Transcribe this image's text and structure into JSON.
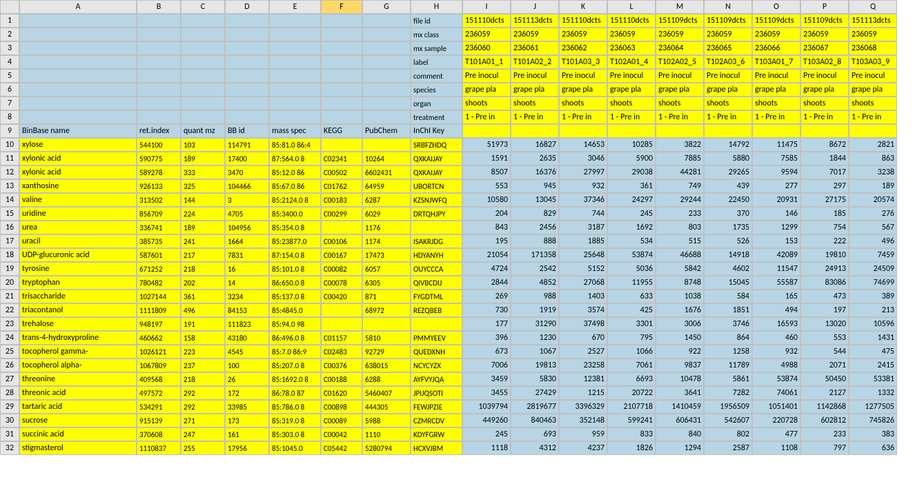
{
  "colors": {
    "lightblue": "#b7d5e4",
    "yellow": "#ffff00",
    "header_bg": "#e6e6e6",
    "border": "#c0c0c0",
    "selected_col": "#ffd966"
  },
  "selected_column": "F",
  "col_letters": [
    "A",
    "B",
    "C",
    "D",
    "E",
    "F",
    "G",
    "H",
    "I",
    "J",
    "K",
    "L",
    "M",
    "N",
    "O",
    "P",
    "Q"
  ],
  "row_numbers": [
    1,
    2,
    3,
    4,
    5,
    6,
    7,
    8,
    9,
    10,
    11,
    12,
    13,
    14,
    15,
    16,
    17,
    18,
    19,
    20,
    21,
    22,
    23,
    24,
    25,
    26,
    27,
    28,
    29,
    30,
    31,
    32
  ],
  "meta_labels": {
    "r1": "file id",
    "r2": "mx class",
    "r3": "mx sample",
    "r4": "label",
    "r5": "comment",
    "r6": "species",
    "r7": "organ",
    "r8": "treatment"
  },
  "headers_row9": {
    "A": "BinBase name",
    "B": "ret.index",
    "C": "quant mz",
    "D": "BB id",
    "E": "mass spec",
    "F": "KEGG",
    "G": "PubChem",
    "H": "InChI Key"
  },
  "meta_values": {
    "r1": [
      "151110dcts",
      "151113dcts",
      "151110dcts",
      "151110dcts",
      "151109dcts",
      "151109dcts",
      "151109dcts",
      "151109dcts",
      "151113dcts"
    ],
    "r2": [
      "236059",
      "236059",
      "236059",
      "236059",
      "236059",
      "236059",
      "236059",
      "236059",
      "236059"
    ],
    "r3": [
      "236060",
      "236061",
      "236062",
      "236063",
      "236064",
      "236065",
      "236066",
      "236067",
      "236068"
    ],
    "r4": [
      "T101A01_1",
      "T101A02_2",
      "T101A03_3",
      "T102A01_4",
      "T102A02_5",
      "T102A03_6",
      "T103A01_7",
      "T103A02_8",
      "T103A03_9"
    ],
    "r5": [
      "Pre inocul",
      "Pre inocul",
      "Pre inocul",
      "Pre inocul",
      "Pre inocul",
      "Pre inocul",
      "Pre inocul",
      "Pre inocul",
      "Pre inocul"
    ],
    "r6": [
      "grape pla",
      "grape pla",
      "grape pla",
      "grape pla",
      "grape pla",
      "grape pla",
      "grape pla",
      "grape pla",
      "grape pla"
    ],
    "r7": [
      "shoots",
      "shoots",
      "shoots",
      "shoots",
      "shoots",
      "shoots",
      "shoots",
      "shoots",
      "shoots"
    ],
    "r8": [
      "1 - Pre in",
      "1 - Pre in",
      "1 - Pre in",
      "1 - Pre in",
      "1 - Pre in",
      "1 - Pre in",
      "1 - Pre in",
      "1 - Pre in",
      "1 - Pre in"
    ]
  },
  "data_rows": [
    {
      "A": "xylose",
      "B": "544100",
      "C": "103",
      "D": "114791",
      "E": "85:81.0 86:4",
      "F": "",
      "G": "",
      "H": "SRBFZHDQ",
      "vals": [
        "51973",
        "16827",
        "14653",
        "10285",
        "3822",
        "14792",
        "11475",
        "8672",
        "2821"
      ]
    },
    {
      "A": "xylonic acid",
      "B": "590775",
      "C": "189",
      "D": "17400",
      "E": "87:564.0 8",
      "F": "C02341",
      "G": "10264",
      "H": "QXKAIJAY",
      "vals": [
        "1591",
        "2635",
        "3046",
        "5900",
        "7885",
        "5880",
        "7585",
        "1844",
        "863"
      ]
    },
    {
      "A": "xylonic acid",
      "B": "589278",
      "C": "333",
      "D": "3470",
      "E": "85:12.0 86",
      "F": "C00502",
      "G": "6602431",
      "H": "QXKAIJAY",
      "vals": [
        "8507",
        "16376",
        "27997",
        "29038",
        "44281",
        "29265",
        "9594",
        "7017",
        "3238"
      ]
    },
    {
      "A": "xanthosine",
      "B": "926133",
      "C": "325",
      "D": "104466",
      "E": "85:67.0 86",
      "F": "C01762",
      "G": "64959",
      "H": "UBORTCN",
      "vals": [
        "553",
        "945",
        "932",
        "361",
        "749",
        "439",
        "277",
        "297",
        "189"
      ]
    },
    {
      "A": "valine",
      "B": "313502",
      "C": "144",
      "D": "3",
      "E": "85:2124.0 8",
      "F": "C00183",
      "G": "6287",
      "H": "KZSNJWFQ",
      "vals": [
        "10580",
        "13045",
        "37346",
        "24297",
        "29244",
        "22450",
        "20931",
        "27175",
        "20574"
      ]
    },
    {
      "A": "uridine",
      "B": "856709",
      "C": "224",
      "D": "4705",
      "E": "85:3400.0",
      "F": "C00299",
      "G": "6029",
      "H": "DRTQHJPY",
      "vals": [
        "204",
        "829",
        "744",
        "245",
        "233",
        "370",
        "146",
        "185",
        "276"
      ]
    },
    {
      "A": "urea",
      "B": "336741",
      "C": "189",
      "D": "104956",
      "E": "85:354.0 8",
      "F": "",
      "G": "1176",
      "H": "",
      "vals": [
        "843",
        "2456",
        "3187",
        "1692",
        "803",
        "1735",
        "1299",
        "754",
        "567"
      ]
    },
    {
      "A": "uracil",
      "B": "385735",
      "C": "241",
      "D": "1664",
      "E": "85:23877.0",
      "F": "C00106",
      "G": "1174",
      "H": "ISAKRJDG",
      "vals": [
        "195",
        "888",
        "1885",
        "534",
        "515",
        "526",
        "153",
        "222",
        "496"
      ]
    },
    {
      "A": "UDP-glucuronic acid",
      "B": "587601",
      "C": "217",
      "D": "7831",
      "E": "87:154.0 8",
      "F": "C00167",
      "G": "17473",
      "H": "HDYANYH",
      "vals": [
        "21054",
        "171358",
        "25648",
        "53874",
        "46688",
        "14918",
        "42089",
        "19810",
        "7459"
      ]
    },
    {
      "A": "tyrosine",
      "B": "671252",
      "C": "218",
      "D": "16",
      "E": "85:101.0 8",
      "F": "C00082",
      "G": "6057",
      "H": "OUYCCCA",
      "vals": [
        "4724",
        "2542",
        "5152",
        "5036",
        "5842",
        "4602",
        "11547",
        "24913",
        "24509"
      ]
    },
    {
      "A": "tryptophan",
      "B": "780482",
      "C": "202",
      "D": "14",
      "E": "86:650.0 8",
      "F": "C00078",
      "G": "6305",
      "H": "QIVBCDIJ",
      "vals": [
        "2844",
        "4852",
        "27068",
        "11955",
        "8748",
        "15045",
        "55587",
        "83086",
        "74699"
      ]
    },
    {
      "A": "trisaccharide",
      "B": "1027144",
      "C": "361",
      "D": "3234",
      "E": "85:137.0 8",
      "F": "C00420",
      "G": "871",
      "H": "FYGDTML",
      "vals": [
        "269",
        "988",
        "1403",
        "633",
        "1038",
        "584",
        "165",
        "473",
        "389"
      ]
    },
    {
      "A": "triacontanol",
      "B": "1111809",
      "C": "496",
      "D": "84153",
      "E": "85:4845.0",
      "F": "",
      "G": "68972",
      "H": "REZQBEB",
      "vals": [
        "730",
        "1919",
        "3574",
        "425",
        "1676",
        "1851",
        "494",
        "197",
        "213"
      ]
    },
    {
      "A": "trehalose",
      "B": "948197",
      "C": "191",
      "D": "111823",
      "E": "85:94.0 98",
      "F": "",
      "G": "",
      "H": "",
      "vals": [
        "177",
        "31290",
        "37498",
        "3301",
        "3006",
        "3746",
        "16593",
        "13020",
        "10596"
      ]
    },
    {
      "A": "trans-4-hydroxyproline",
      "B": "460662",
      "C": "158",
      "D": "43180",
      "E": "86:496.0 8",
      "F": "C01157",
      "G": "5810",
      "H": "PMMYEEV",
      "vals": [
        "396",
        "1230",
        "670",
        "795",
        "1450",
        "864",
        "460",
        "553",
        "1431"
      ]
    },
    {
      "A": "tocopherol gamma-",
      "B": "1026121",
      "C": "223",
      "D": "4545",
      "E": "85:7.0 86:9",
      "F": "C02483",
      "G": "92729",
      "H": "QUEDXNH",
      "vals": [
        "673",
        "1067",
        "2527",
        "1066",
        "922",
        "1258",
        "932",
        "544",
        "475"
      ]
    },
    {
      "A": "tocopherol alpha-",
      "B": "1067809",
      "C": "237",
      "D": "100",
      "E": "85:207.0 8",
      "F": "C00376",
      "G": "638015",
      "H": "NCYCYZX",
      "vals": [
        "7006",
        "19813",
        "23258",
        "7061",
        "9837",
        "11789",
        "4988",
        "2071",
        "2415"
      ]
    },
    {
      "A": "threonine",
      "B": "409568",
      "C": "218",
      "D": "26",
      "E": "85:1692.0 8",
      "F": "C00188",
      "G": "6288",
      "H": "AYFVYJQA",
      "vals": [
        "3459",
        "5830",
        "12381",
        "6693",
        "10478",
        "5861",
        "53874",
        "50450",
        "53381"
      ]
    },
    {
      "A": "threonic acid",
      "B": "497572",
      "C": "292",
      "D": "172",
      "E": "86:78.0 87",
      "F": "C01620",
      "G": "5460407",
      "H": "JPIJQSOTI",
      "vals": [
        "3455",
        "27429",
        "1215",
        "20722",
        "3641",
        "7282",
        "74061",
        "2127",
        "1332"
      ]
    },
    {
      "A": "tartaric acid",
      "B": "534291",
      "C": "292",
      "D": "33985",
      "E": "85:786.0 8",
      "F": "C00898",
      "G": "444305",
      "H": "FEWJPZIE",
      "vals": [
        "1039794",
        "2819677",
        "3396329",
        "2107718",
        "1410459",
        "1956509",
        "1051401",
        "1142868",
        "1277505"
      ]
    },
    {
      "A": "sucrose",
      "B": "915139",
      "C": "271",
      "D": "173",
      "E": "85:319.0 8",
      "F": "C00089",
      "G": "5988",
      "H": "CZMRCDV",
      "vals": [
        "449260",
        "840463",
        "352148",
        "599241",
        "606431",
        "542607",
        "220728",
        "602812",
        "745826"
      ]
    },
    {
      "A": "succinic acid",
      "B": "370608",
      "C": "247",
      "D": "161",
      "E": "85:303.0 8",
      "F": "C00042",
      "G": "1110",
      "H": "KDYFGRW",
      "vals": [
        "245",
        "693",
        "959",
        "833",
        "840",
        "802",
        "477",
        "233",
        "383"
      ]
    },
    {
      "A": "stigmasterol",
      "B": "1110837",
      "C": "255",
      "D": "17956",
      "E": "85:1045.0",
      "F": "C05442",
      "G": "5280794",
      "H": "HCXVJBM",
      "vals": [
        "1118",
        "4312",
        "4237",
        "1826",
        "1294",
        "2587",
        "1108",
        "797",
        "636"
      ]
    }
  ]
}
